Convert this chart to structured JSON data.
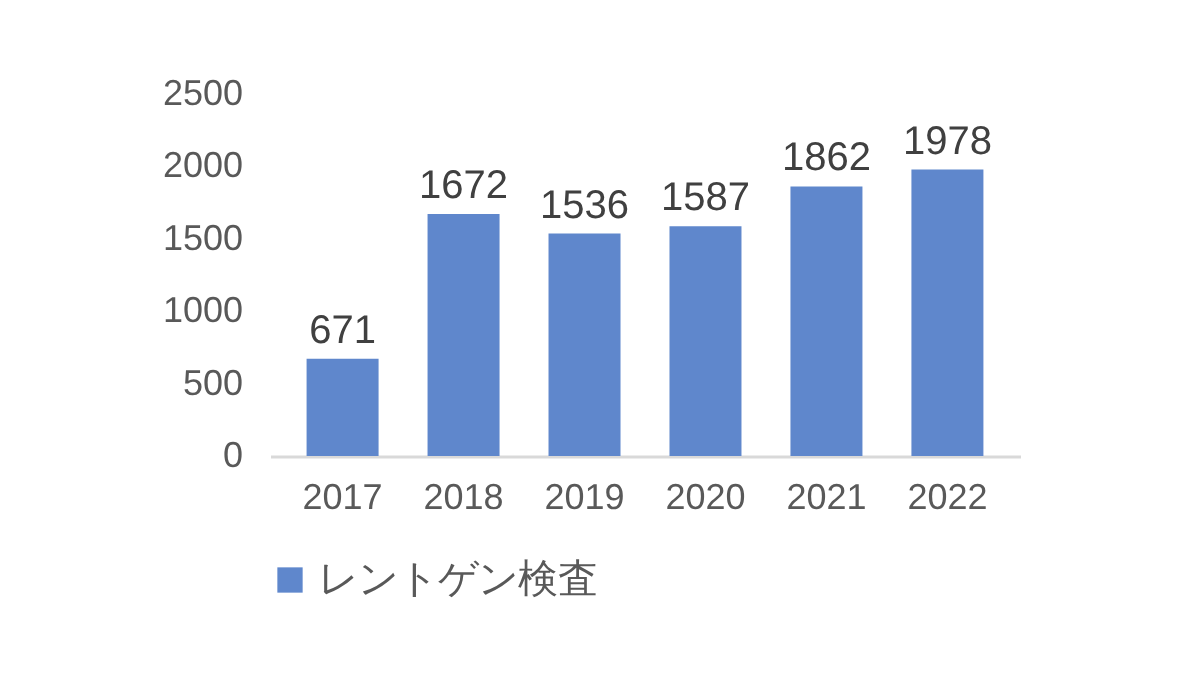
{
  "chart_data": {
    "type": "bar",
    "categories": [
      "2017",
      "2018",
      "2019",
      "2020",
      "2021",
      "2022"
    ],
    "series": [
      {
        "name": "レントゲン検査",
        "color": "#5f87cc",
        "values": [
          671,
          1672,
          1536,
          1587,
          1862,
          1978
        ]
      }
    ],
    "ylim": [
      0,
      2500
    ],
    "yticks": [
      0,
      500,
      1000,
      1500,
      2000,
      2500
    ],
    "grid": false,
    "legend": "bottom",
    "data_labels": true
  }
}
